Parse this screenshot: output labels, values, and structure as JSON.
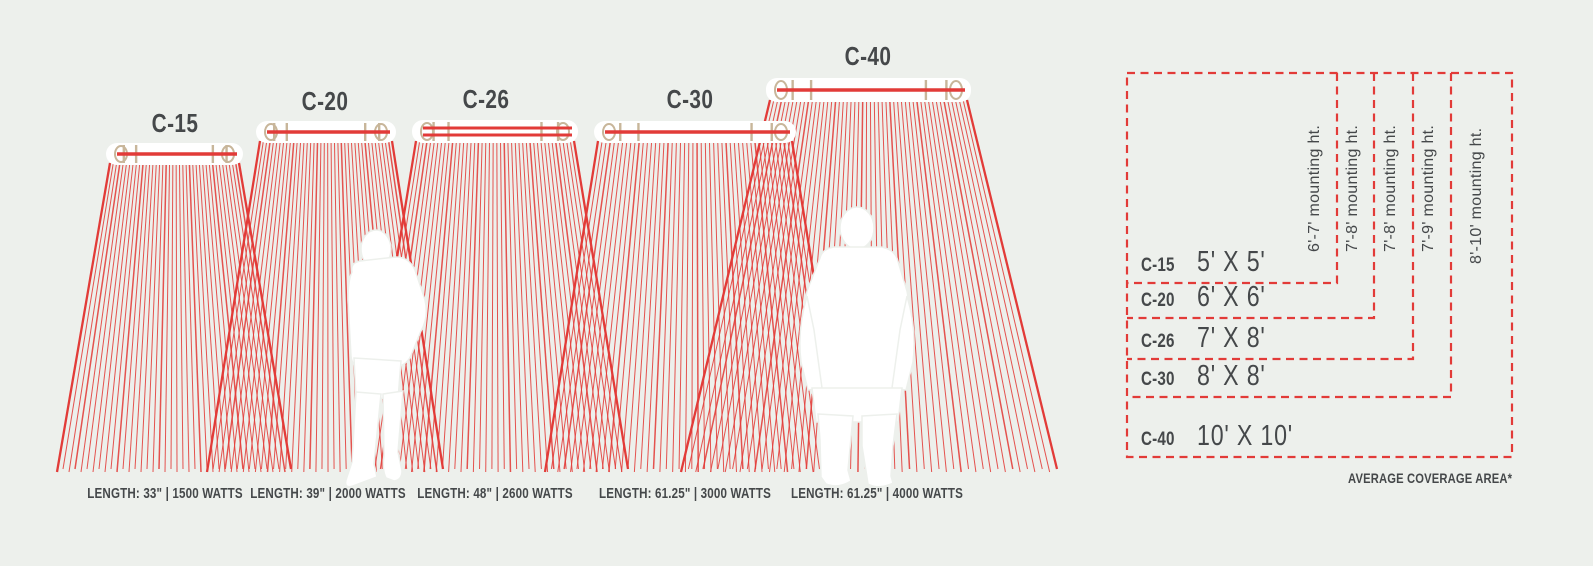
{
  "colors": {
    "background": "#edf0ec",
    "red": "#e23b38",
    "ink": "#45484a",
    "tan": "#c8b69a",
    "white": "#ffffff"
  },
  "heaters": [
    {
      "model": "C-15",
      "spec": "LENGTH: 33\" | 1500 WATTS"
    },
    {
      "model": "C-20",
      "spec": "LENGTH: 39\" | 2000 WATTS"
    },
    {
      "model": "C-26",
      "spec": "LENGTH: 48\" | 2600 WATTS"
    },
    {
      "model": "C-30",
      "spec": "LENGTH: 61.25\" | 3000 WATTS"
    },
    {
      "model": "C-40",
      "spec": "LENGTH: 61.25\" | 4000 WATTS"
    }
  ],
  "coverage_chart": {
    "type": "nested-area-diagram",
    "footnote": "AVERAGE COVERAGE AREA*",
    "rows": [
      {
        "model": "C-15",
        "area": "5' X 5'",
        "mounting": "6'-7' mounting ht."
      },
      {
        "model": "C-20",
        "area": "6' X 6'",
        "mounting": "7'-8' mounting ht."
      },
      {
        "model": "C-26",
        "area": "7' X 8'",
        "mounting": "7'-8' mounting ht."
      },
      {
        "model": "C-30",
        "area": "8' X 8'",
        "mounting": "7'-9' mounting ht."
      },
      {
        "model": "C-40",
        "area": "10' X 10'",
        "mounting": "8'-10' mounting ht."
      }
    ]
  }
}
